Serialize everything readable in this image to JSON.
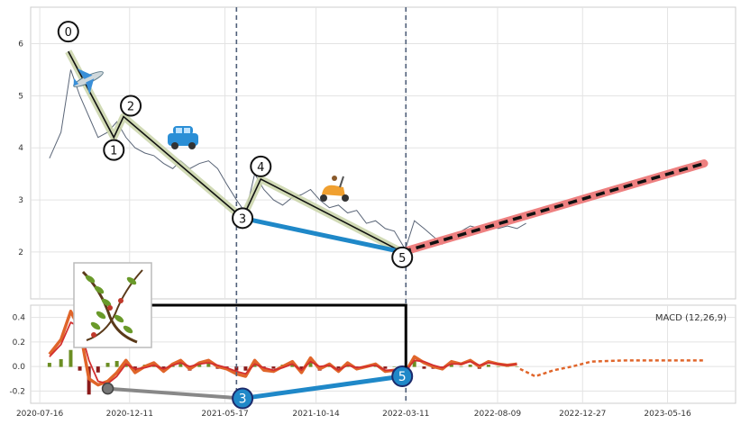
{
  "chart_data": [
    {
      "type": "line",
      "panel": "price",
      "yticks": [
        2,
        3,
        4,
        5,
        6
      ],
      "ylim": [
        1.1,
        6.7
      ],
      "grid": true,
      "series": [
        {
          "kind": "price",
          "x": [
            "2020-08-01",
            "2020-08-20",
            "2020-09-05",
            "2020-09-20",
            "2020-10-05",
            "2020-10-20",
            "2020-11-05",
            "2020-11-20",
            "2020-12-05",
            "2020-12-20",
            "2021-01-05",
            "2021-01-20",
            "2021-02-05",
            "2021-02-20",
            "2021-03-05",
            "2021-03-20",
            "2021-04-05",
            "2021-04-20",
            "2021-05-05",
            "2021-05-20",
            "2021-06-05",
            "2021-06-20",
            "2021-07-05",
            "2021-07-20",
            "2021-08-05",
            "2021-08-20",
            "2021-09-05",
            "2021-09-20",
            "2021-10-05",
            "2021-10-20",
            "2021-11-05",
            "2021-11-20",
            "2021-12-05",
            "2021-12-20",
            "2022-01-05",
            "2022-01-20",
            "2022-02-05",
            "2022-02-20",
            "2022-03-10",
            "2022-03-25",
            "2022-04-10",
            "2022-04-25",
            "2022-05-10",
            "2022-05-25",
            "2022-06-10",
            "2022-06-25",
            "2022-07-10",
            "2022-07-25",
            "2022-08-10",
            "2022-08-25",
            "2022-09-10",
            "2022-09-25"
          ],
          "values": [
            3.8,
            4.3,
            5.5,
            5.0,
            4.6,
            4.2,
            4.3,
            4.5,
            4.2,
            4.0,
            3.9,
            3.85,
            3.7,
            3.6,
            3.75,
            3.6,
            3.7,
            3.75,
            3.6,
            3.3,
            3.0,
            2.75,
            3.5,
            3.2,
            3.0,
            2.9,
            3.05,
            3.1,
            3.2,
            3.0,
            2.85,
            2.9,
            2.75,
            2.8,
            2.55,
            2.6,
            2.45,
            2.4,
            2.05,
            2.6,
            2.45,
            2.3,
            2.15,
            2.3,
            2.4,
            2.5,
            2.45,
            2.55,
            2.45,
            2.5,
            2.45,
            2.55
          ]
        }
      ],
      "waves": {
        "labels": [
          "0",
          "1",
          "2",
          "3",
          "4",
          "5"
        ],
        "points": [
          {
            "x": "2020-09-01",
            "y": 5.85
          },
          {
            "x": "2020-11-15",
            "y": 4.2
          },
          {
            "x": "2020-12-01",
            "y": 4.6
          },
          {
            "x": "2021-06-15",
            "y": 2.65
          },
          {
            "x": "2021-07-15",
            "y": 3.4
          },
          {
            "x": "2022-03-05",
            "y": 2.0
          }
        ]
      },
      "projection": {
        "start": {
          "x": "2022-03-05",
          "y": 2.0
        },
        "end": {
          "x": "2023-07-15",
          "y": 3.7
        }
      },
      "connector": {
        "from": {
          "x": "2021-06-15",
          "y": 2.65
        },
        "to": {
          "x": "2022-03-05",
          "y": 2.0
        }
      },
      "vlines": [
        "2021-06-05",
        "2022-03-11"
      ],
      "icons": [
        "airplane-icon",
        "car-icon",
        "scooter-icon",
        "plant-thumbnail"
      ]
    },
    {
      "type": "line",
      "panel": "macd",
      "title": "MACD (12,26,9)",
      "yticks": [
        -0.2,
        0.0,
        0.2,
        0.4
      ],
      "ylim": [
        -0.3,
        0.5
      ],
      "xlabels": [
        "2020-07-16",
        "2020-12-11",
        "2021-05-17",
        "2021-10-14",
        "2022-03-11",
        "2022-08-09",
        "2022-12-27",
        "2023-05-16"
      ],
      "xlim": [
        "2020-07-01",
        "2023-09-05"
      ],
      "grid": true,
      "series": [
        {
          "kind": "macd",
          "color": "#e0652a",
          "x": [
            "2020-08-01",
            "2020-08-20",
            "2020-09-05",
            "2020-09-20",
            "2020-10-05",
            "2020-10-20",
            "2020-11-05",
            "2020-11-20",
            "2020-12-05",
            "2020-12-20",
            "2021-01-05",
            "2021-01-20",
            "2021-02-05",
            "2021-02-20",
            "2021-03-05",
            "2021-03-20",
            "2021-04-05",
            "2021-04-20",
            "2021-05-05",
            "2021-05-20",
            "2021-06-05",
            "2021-06-20",
            "2021-07-05",
            "2021-07-20",
            "2021-08-05",
            "2021-08-20",
            "2021-09-05",
            "2021-09-20",
            "2021-10-05",
            "2021-10-20",
            "2021-11-05",
            "2021-11-20",
            "2021-12-05",
            "2021-12-20",
            "2022-01-05",
            "2022-01-20",
            "2022-02-05",
            "2022-02-20",
            "2022-03-10",
            "2022-03-25",
            "2022-04-10",
            "2022-04-25",
            "2022-05-10",
            "2022-05-25",
            "2022-06-10",
            "2022-06-25",
            "2022-07-10",
            "2022-07-25",
            "2022-08-10",
            "2022-08-25",
            "2022-09-10"
          ],
          "values": [
            0.1,
            0.22,
            0.45,
            0.3,
            -0.1,
            -0.15,
            -0.12,
            -0.05,
            0.05,
            -0.05,
            0.0,
            0.03,
            -0.04,
            0.02,
            0.05,
            -0.02,
            0.03,
            0.05,
            0.0,
            -0.02,
            -0.06,
            -0.08,
            0.05,
            -0.03,
            -0.04,
            0.0,
            0.04,
            -0.05,
            0.07,
            -0.02,
            0.02,
            -0.04,
            0.03,
            -0.02,
            0.0,
            0.02,
            -0.04,
            -0.03,
            -0.05,
            0.08,
            0.03,
            0.0,
            -0.02,
            0.04,
            0.02,
            0.05,
            0.0,
            0.04,
            0.02,
            0.01,
            0.02
          ]
        },
        {
          "kind": "signal",
          "color": "#d32f2f",
          "x": [
            "2020-08-01",
            "2020-08-20",
            "2020-09-05",
            "2020-09-20",
            "2020-10-05",
            "2020-10-20",
            "2020-11-05",
            "2020-11-20",
            "2020-12-05",
            "2020-12-20",
            "2021-01-05",
            "2021-01-20",
            "2021-02-05",
            "2021-02-20",
            "2021-03-05",
            "2021-03-20",
            "2021-04-05",
            "2021-04-20",
            "2021-05-05",
            "2021-05-20",
            "2021-06-05",
            "2021-06-20",
            "2021-07-05",
            "2021-07-20",
            "2021-08-05",
            "2021-08-20",
            "2021-09-05",
            "2021-09-20",
            "2021-10-05",
            "2021-10-20",
            "2021-11-05",
            "2021-11-20",
            "2021-12-05",
            "2021-12-20",
            "2022-01-05",
            "2022-01-20",
            "2022-02-05",
            "2022-02-20",
            "2022-03-10",
            "2022-03-25",
            "2022-04-10",
            "2022-04-25",
            "2022-05-10",
            "2022-05-25",
            "2022-06-10",
            "2022-06-25",
            "2022-07-10",
            "2022-07-25",
            "2022-08-10",
            "2022-08-25",
            "2022-09-10"
          ],
          "values": [
            0.08,
            0.18,
            0.36,
            0.32,
            0.05,
            -0.12,
            -0.14,
            -0.08,
            0.02,
            -0.02,
            -0.01,
            0.01,
            -0.02,
            0.01,
            0.03,
            0.0,
            0.02,
            0.03,
            0.01,
            -0.01,
            -0.04,
            -0.06,
            0.02,
            -0.01,
            -0.03,
            -0.01,
            0.02,
            -0.03,
            0.04,
            0.0,
            0.01,
            -0.03,
            0.01,
            -0.01,
            0.0,
            0.01,
            -0.03,
            -0.03,
            -0.04,
            0.05,
            0.04,
            0.01,
            -0.01,
            0.02,
            0.02,
            0.04,
            0.01,
            0.03,
            0.02,
            0.01,
            0.02
          ]
        },
        {
          "kind": "projection",
          "color": "#e0652a",
          "x": [
            "2022-09-15",
            "2022-10-10",
            "2022-11-10",
            "2022-12-10",
            "2023-01-10",
            "2023-03-10",
            "2023-05-10",
            "2023-07-15"
          ],
          "values": [
            -0.02,
            -0.08,
            -0.03,
            0.0,
            0.04,
            0.05,
            0.05,
            0.05
          ]
        }
      ],
      "waves": {
        "labels": [
          "3",
          "5"
        ],
        "points": [
          {
            "x": "2020-11-05",
            "y": -0.18
          },
          {
            "x": "2021-06-15",
            "y": -0.26
          },
          {
            "x": "2022-03-05",
            "y": -0.08
          }
        ]
      }
    }
  ]
}
